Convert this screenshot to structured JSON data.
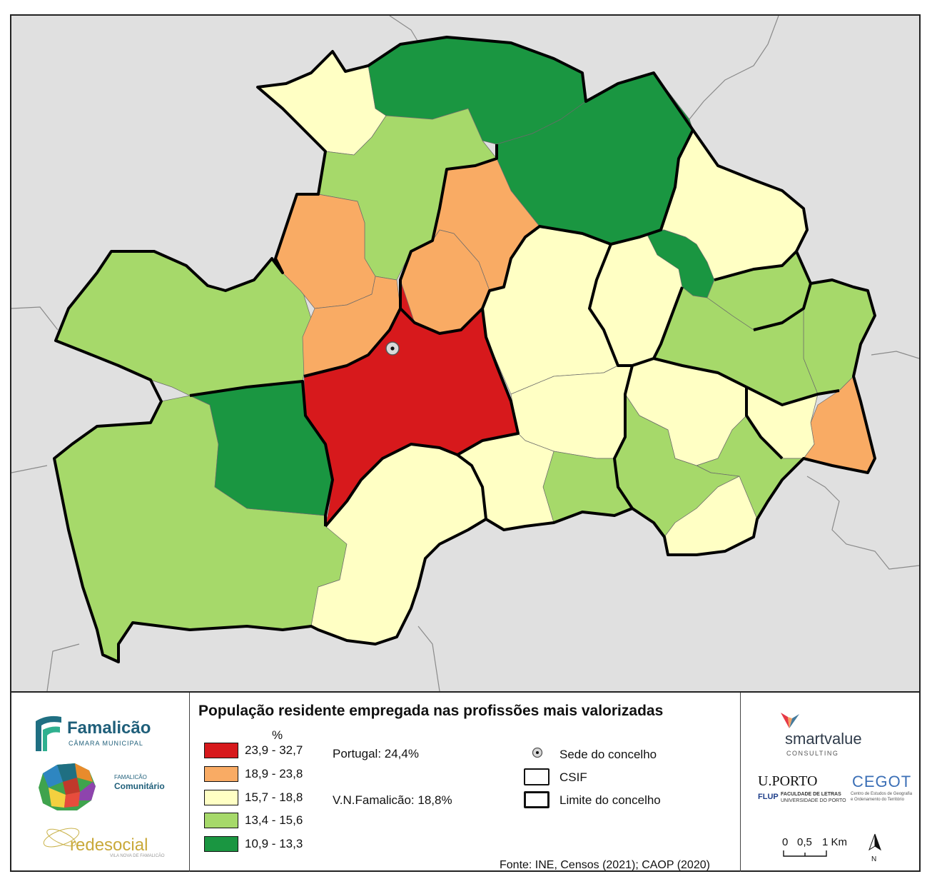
{
  "legend": {
    "title": "População residente empregada nas profissões mais valorizadas",
    "unit": "%",
    "classes": [
      {
        "range": "23,9 - 32,7",
        "color": "#d7191c"
      },
      {
        "range": "18,9 - 23,8",
        "color": "#f9ab64"
      },
      {
        "range": "15,7 - 18,8",
        "color": "#ffffc4"
      },
      {
        "range": "13,4 - 15,6",
        "color": "#a6d96a"
      },
      {
        "range": "10,9 - 13,3",
        "color": "#1a9641"
      }
    ],
    "portugal": "Portugal: 24,4%",
    "vnf": "V.N.Famalicão: 18,8%",
    "sede": "Sede do concelho",
    "csif": "CSIF",
    "limite": "Limite do concelho",
    "source": "Fonte: INE, Censos (2021); CAOP (2020)"
  },
  "logos": {
    "famalicao": "Famalicão",
    "famalicao_sub": "CÂMARA MUNICIPAL",
    "comunitario_1": "FAMALICÃO",
    "comunitario_2": "Comunitário",
    "redesocial": "redesocial",
    "redesocial_sub": "VILA NOVA DE FAMALICÃO",
    "smartvalue": "smartvalue",
    "smartvalue_sub": "CONSULTING",
    "uporto": "U.PORTO",
    "flup": "FLUP",
    "flup_sub1": "FACULDADE DE LETRAS",
    "flup_sub2": "UNIVERSIDADE DO PORTO",
    "cegot": "CEGOT",
    "cegot_sub1": "Centro de Estudos de Geografia",
    "cegot_sub2": "e Ordenamento do Território"
  },
  "scale": {
    "t0": "0",
    "t1": "0,5",
    "t2": "1 Km"
  },
  "north": "N",
  "map": {
    "background_color": "#e0e0e0",
    "seat_marker": "sede-do-concelho"
  }
}
